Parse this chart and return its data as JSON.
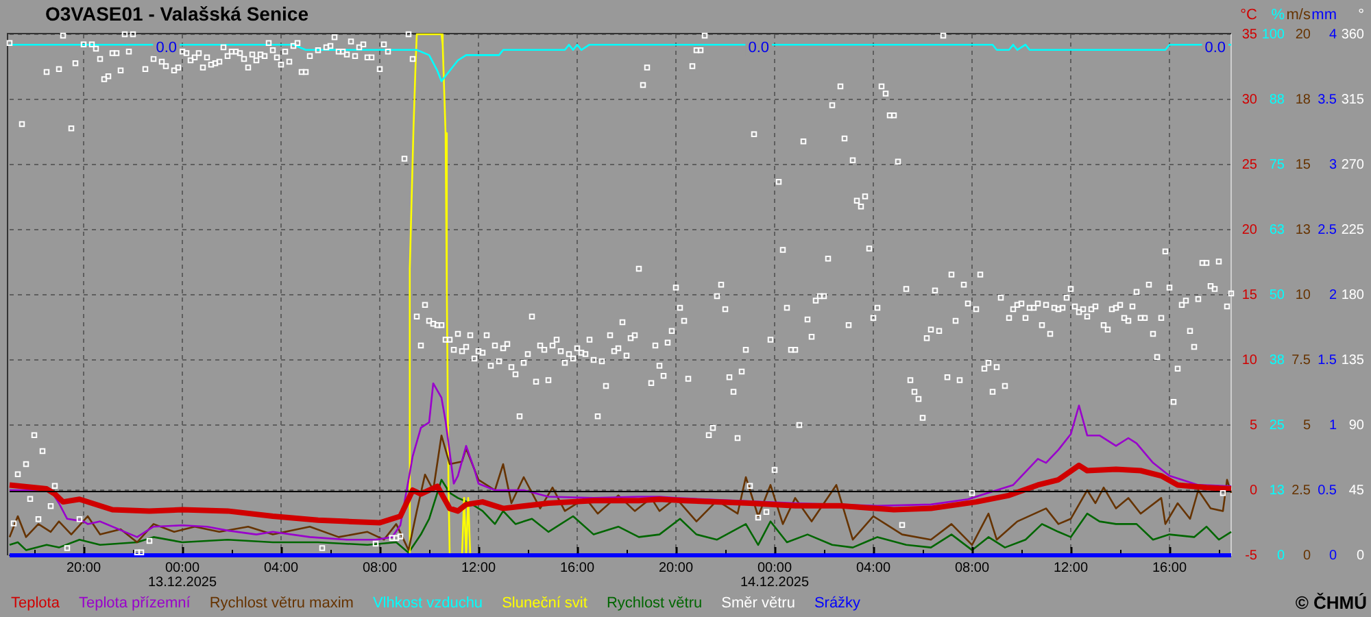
{
  "chart_data": [
    {
      "type": "line",
      "title": "O3VASE01 - Valašská Senice",
      "xlim": [
        "2025-12-12T17:00",
        "2025-12-14T18:30"
      ],
      "xticks": [
        {
          "value": "2025-12-12T18:00",
          "label": null
        },
        {
          "value": "2025-12-12T20:00",
          "label": "20:00"
        },
        {
          "value": "2025-12-12T22:00",
          "label": null
        },
        {
          "value": "2025-12-13T00:00",
          "label": "00:00\n13.12.2025"
        },
        {
          "value": "2025-12-13T02:00",
          "label": null
        },
        {
          "value": "2025-12-13T04:00",
          "label": "04:00"
        },
        {
          "value": "2025-12-13T06:00",
          "label": null
        },
        {
          "value": "2025-12-13T08:00",
          "label": "08:00"
        },
        {
          "value": "2025-12-13T10:00",
          "label": null
        },
        {
          "value": "2025-12-13T12:00",
          "label": "12:00"
        },
        {
          "value": "2025-12-13T14:00",
          "label": null
        },
        {
          "value": "2025-12-13T16:00",
          "label": "16:00"
        },
        {
          "value": "2025-12-13T18:00",
          "label": null
        },
        {
          "value": "2025-12-13T20:00",
          "label": "20:00"
        },
        {
          "value": "2025-12-13T22:00",
          "label": null
        },
        {
          "value": "2025-12-14T00:00",
          "label": "00:00\n14.12.2025"
        },
        {
          "value": "2025-12-14T02:00",
          "label": null
        },
        {
          "value": "2025-12-14T04:00",
          "label": "04:00"
        },
        {
          "value": "2025-12-14T06:00",
          "label": null
        },
        {
          "value": "2025-12-14T08:00",
          "label": "08:00"
        },
        {
          "value": "2025-12-14T10:00",
          "label": null
        },
        {
          "value": "2025-12-14T12:00",
          "label": "12:00"
        },
        {
          "value": "2025-12-14T14:00",
          "label": null
        },
        {
          "value": "2025-12-14T16:00",
          "label": "16:00"
        },
        {
          "value": "2025-12-14T18:00",
          "label": null
        }
      ],
      "ylabel": "°C",
      "ylim": [
        -5,
        35
      ],
      "yticks": [
        -5,
        0,
        5,
        10,
        15,
        20,
        25,
        30,
        35
      ],
      "y2label": "%",
      "y2lim": [
        0,
        100
      ],
      "y2ticks": [
        0,
        {
          "value": 12.5,
          "label": "13"
        },
        25,
        {
          "value": 37.5,
          "label": "38"
        },
        50,
        {
          "value": 62.5,
          "label": "63"
        },
        75,
        {
          "value": 87.5,
          "label": "88"
        },
        100
      ],
      "y3label": "m/s",
      "y3lim": [
        0,
        20
      ],
      "y3ticks": [
        0,
        2.5,
        5,
        7.5,
        10,
        {
          "value": 12.5,
          "label": "13"
        },
        15,
        {
          "value": 17.5,
          "label": "18"
        },
        20
      ],
      "grid": true,
      "legend": "bottom",
      "ref_lines": [
        {
          "axis": "y",
          "value": 0,
          "color": "#000000"
        }
      ],
      "annotations": [
        "© ČHMÚ"
      ],
      "series": [
        {
          "name": "Teplota",
          "color": "#d00000",
          "x": [
            "2025-12-12T17:00",
            "2025-12-12T18:30",
            "2025-12-12T18:50",
            "2025-12-12T19:10",
            "2025-12-12T19:50",
            "2025-12-12T21:10",
            "2025-12-12T22:40",
            "2025-12-13T00:00",
            "2025-12-13T01:50",
            "2025-12-13T03:40",
            "2025-12-13T05:30",
            "2025-12-13T06:40",
            "2025-12-13T08:00",
            "2025-12-13T08:50",
            "2025-12-13T09:20",
            "2025-12-13T09:40",
            "2025-12-13T10:20",
            "2025-12-13T10:50",
            "2025-12-13T11:10",
            "2025-12-13T11:30",
            "2025-12-13T12:10",
            "2025-12-13T13:00",
            "2025-12-13T14:50",
            "2025-12-13T16:40",
            "2025-12-13T18:30",
            "2025-12-13T19:20",
            "2025-12-13T20:20",
            "2025-12-13T23:00",
            "2025-12-14T00:50",
            "2025-12-14T02:40",
            "2025-12-14T04:50",
            "2025-12-14T06:20",
            "2025-12-14T08:10",
            "2025-12-14T09:30",
            "2025-12-14T10:40",
            "2025-12-14T11:30",
            "2025-12-14T12:20",
            "2025-12-14T12:40",
            "2025-12-14T13:50",
            "2025-12-14T14:50",
            "2025-12-14T15:40",
            "2025-12-14T16:20",
            "2025-12-14T17:30",
            "2025-12-14T18:30"
          ],
          "values": [
            0.4,
            0.1,
            -0.3,
            -0.9,
            -0.7,
            -1.5,
            -1.6,
            -1.5,
            -1.6,
            -2.0,
            -2.3,
            -2.4,
            -2.5,
            -2.0,
            0.0,
            -0.3,
            0.3,
            -1.4,
            -1.6,
            -1.1,
            -0.9,
            -1.4,
            -1.0,
            -0.8,
            -0.8,
            -0.7,
            -0.8,
            -1.0,
            -1.2,
            -1.2,
            -1.5,
            -1.4,
            -0.9,
            -0.4,
            0.4,
            0.8,
            1.9,
            1.5,
            1.6,
            1.5,
            1.1,
            0.4,
            0.2,
            0.1
          ]
        },
        {
          "name": "Teplota přízemní",
          "color": "#9900cc",
          "x": [
            "2025-12-12T17:00",
            "2025-12-12T18:40",
            "2025-12-12T19:00",
            "2025-12-12T19:20",
            "2025-12-12T20:00",
            "2025-12-12T20:10",
            "2025-12-12T20:40",
            "2025-12-12T22:10",
            "2025-12-12T22:50",
            "2025-12-13T00:00",
            "2025-12-13T01:00",
            "2025-12-13T01:50",
            "2025-12-13T03:00",
            "2025-12-13T03:40",
            "2025-12-13T05:10",
            "2025-12-13T06:40",
            "2025-12-13T07:50",
            "2025-12-13T08:30",
            "2025-12-13T08:50",
            "2025-12-13T09:10",
            "2025-12-13T09:20",
            "2025-12-13T09:40",
            "2025-12-13T10:00",
            "2025-12-13T10:10",
            "2025-12-13T10:30",
            "2025-12-13T10:40",
            "2025-12-13T11:00",
            "2025-12-13T11:10",
            "2025-12-13T11:30",
            "2025-12-13T11:50",
            "2025-12-13T12:00",
            "2025-12-13T12:40",
            "2025-12-13T13:50",
            "2025-12-13T14:50",
            "2025-12-13T16:40",
            "2025-12-13T18:30",
            "2025-12-13T19:20",
            "2025-12-13T20:00",
            "2025-12-13T21:10",
            "2025-12-14T00:50",
            "2025-12-14T04:10",
            "2025-12-14T06:20",
            "2025-12-14T07:50",
            "2025-12-14T09:00",
            "2025-12-14T09:40",
            "2025-12-14T10:40",
            "2025-12-14T11:00",
            "2025-12-14T11:30",
            "2025-12-14T12:00",
            "2025-12-14T12:20",
            "2025-12-14T12:40",
            "2025-12-14T13:10",
            "2025-12-14T13:50",
            "2025-12-14T14:20",
            "2025-12-14T14:40",
            "2025-12-14T15:20",
            "2025-12-14T16:00",
            "2025-12-14T17:10",
            "2025-12-14T18:30"
          ],
          "values": [
            0.0,
            0.0,
            -1.0,
            -2.2,
            -2.4,
            -2.6,
            -2.4,
            -3.6,
            -2.8,
            -2.7,
            -2.8,
            -3.1,
            -3.4,
            -3.2,
            -3.6,
            -3.8,
            -3.8,
            -3.6,
            -2.7,
            0.8,
            2.6,
            4.8,
            5.2,
            8.2,
            7.1,
            5.3,
            0.5,
            1.1,
            3.4,
            1.6,
            0.5,
            0.0,
            0.0,
            -0.5,
            -0.6,
            -0.5,
            -0.5,
            -0.6,
            -0.7,
            -1.0,
            -1.2,
            -1.1,
            -0.7,
            0.0,
            0.4,
            2.4,
            2.1,
            3.1,
            4.3,
            6.5,
            4.2,
            4.2,
            3.4,
            4.0,
            3.6,
            2.1,
            1.1,
            0.4,
            0.3
          ]
        },
        {
          "name": "Rychlost větru maxim",
          "color": "#663300",
          "axis": "y3",
          "x": [
            "2025-12-12T17:00",
            "2025-12-12T17:20",
            "2025-12-12T17:40",
            "2025-12-12T18:10",
            "2025-12-12T18:40",
            "2025-12-12T19:00",
            "2025-12-12T19:30",
            "2025-12-12T20:10",
            "2025-12-12T20:40",
            "2025-12-12T21:30",
            "2025-12-12T22:10",
            "2025-12-12T22:50",
            "2025-12-12T23:40",
            "2025-12-13T00:30",
            "2025-12-13T01:30",
            "2025-12-13T02:40",
            "2025-12-13T03:40",
            "2025-12-13T05:10",
            "2025-12-13T06:20",
            "2025-12-13T07:30",
            "2025-12-13T08:10",
            "2025-12-13T08:40",
            "2025-12-13T09:10",
            "2025-12-13T09:30",
            "2025-12-13T09:50",
            "2025-12-13T10:10",
            "2025-12-13T10:30",
            "2025-12-13T10:50",
            "2025-12-13T11:20",
            "2025-12-13T11:30",
            "2025-12-13T12:00",
            "2025-12-13T12:40",
            "2025-12-13T13:00",
            "2025-12-13T13:20",
            "2025-12-13T13:50",
            "2025-12-13T14:30",
            "2025-12-13T15:00",
            "2025-12-13T15:30",
            "2025-12-13T16:20",
            "2025-12-13T16:50",
            "2025-12-13T17:40",
            "2025-12-13T18:20",
            "2025-12-13T19:00",
            "2025-12-13T19:20",
            "2025-12-13T20:00",
            "2025-12-13T20:50",
            "2025-12-13T21:40",
            "2025-12-13T22:30",
            "2025-12-13T22:50",
            "2025-12-13T23:20",
            "2025-12-13T23:50",
            "2025-12-14T00:20",
            "2025-12-14T00:50",
            "2025-12-14T01:30",
            "2025-12-14T02:30",
            "2025-12-14T03:10",
            "2025-12-14T04:00",
            "2025-12-14T05:10",
            "2025-12-14T06:20",
            "2025-12-14T07:10",
            "2025-12-14T08:00",
            "2025-12-14T08:40",
            "2025-12-14T09:00",
            "2025-12-14T09:50",
            "2025-12-14T11:00",
            "2025-12-14T11:30",
            "2025-12-14T12:00",
            "2025-12-14T12:40",
            "2025-12-14T13:00",
            "2025-12-14T13:20",
            "2025-12-14T13:50",
            "2025-12-14T14:20",
            "2025-12-14T14:50",
            "2025-12-14T15:40",
            "2025-12-14T15:50",
            "2025-12-14T16:20",
            "2025-12-14T16:50",
            "2025-12-14T17:10",
            "2025-12-14T17:40",
            "2025-12-14T18:10",
            "2025-12-14T18:20",
            "2025-12-14T18:30"
          ],
          "values": [
            0.7,
            1.5,
            0.7,
            1.2,
            0.9,
            1.3,
            0.8,
            1.5,
            0.8,
            1.0,
            0.5,
            1.2,
            0.9,
            1.1,
            0.9,
            1.1,
            0.8,
            1.1,
            0.7,
            0.9,
            0.6,
            1.2,
            0.2,
            1.7,
            3.1,
            2.5,
            4.6,
            3.5,
            3.6,
            4.1,
            2.9,
            2.5,
            3.5,
            2.0,
            3.0,
            1.8,
            2.6,
            1.7,
            2.2,
            1.6,
            2.3,
            1.7,
            2.2,
            1.7,
            2.2,
            1.3,
            2.1,
            1.6,
            3.0,
            1.5,
            2.7,
            1.2,
            2.2,
            1.3,
            2.7,
            0.6,
            1.5,
            0.8,
            0.6,
            1.2,
            0.4,
            1.6,
            0.6,
            1.3,
            1.8,
            1.2,
            1.4,
            2.5,
            2.0,
            2.6,
            1.8,
            2.2,
            1.6,
            2.2,
            1.2,
            2.0,
            1.4,
            2.5,
            1.8,
            1.7,
            2.9,
            2.4
          ]
        },
        {
          "name": "Vlhkost vzduchu",
          "color": "#00ffff",
          "axis": "y2",
          "x": [
            "2025-12-12T17:00",
            "2025-12-13T04:30",
            "2025-12-13T05:00",
            "2025-12-13T09:30",
            "2025-12-13T10:00",
            "2025-12-13T10:20",
            "2025-12-13T10:30",
            "2025-12-13T10:50",
            "2025-12-13T11:10",
            "2025-12-13T11:30",
            "2025-12-13T12:50",
            "2025-12-13T13:00",
            "2025-12-13T15:30",
            "2025-12-13T15:40",
            "2025-12-13T15:50",
            "2025-12-13T16:00",
            "2025-12-13T16:10",
            "2025-12-13T16:30",
            "2025-12-14T08:50",
            "2025-12-14T09:00",
            "2025-12-14T09:30",
            "2025-12-14T09:40",
            "2025-12-14T09:50",
            "2025-12-14T10:10",
            "2025-12-14T10:20",
            "2025-12-14T15:50",
            "2025-12-14T16:00",
            "2025-12-14T18:30"
          ],
          "values": [
            98,
            98,
            97,
            97,
            96,
            93,
            91,
            93,
            95,
            96,
            96,
            97,
            97,
            98,
            97,
            98,
            97,
            98,
            98,
            97,
            97,
            98,
            97,
            98,
            97,
            97,
            98,
            98
          ]
        },
        {
          "name": "Sluneční svit",
          "color": "#ffff00",
          "axis": "y2",
          "x": [
            "2025-12-13T09:10",
            "2025-12-13T09:13",
            "2025-12-13T09:22",
            "2025-12-13T09:27",
            "2025-12-13T09:30",
            "2025-12-13T10:30",
            "2025-12-13T10:33",
            "2025-12-13T10:40",
            "2025-12-13T10:43",
            "2025-12-13T10:47",
            "2025-12-13T10:50",
            "2025-12-13T11:20",
            "2025-12-13T11:25",
            "2025-12-13T11:30",
            "2025-12-13T11:35",
            "2025-12-13T11:40"
          ],
          "values": [
            0,
            55,
            82,
            94,
            100,
            100,
            98,
            81,
            51,
            14,
            0,
            0,
            11,
            0,
            11,
            0
          ]
        },
        {
          "name": "Rychlost větru",
          "color": "#006600",
          "axis": "y3",
          "x": [
            "2025-12-12T17:00",
            "2025-12-12T17:20",
            "2025-12-12T17:40",
            "2025-12-12T18:30",
            "2025-12-12T19:00",
            "2025-12-12T19:50",
            "2025-12-12T20:40",
            "2025-12-12T22:10",
            "2025-12-12T22:50",
            "2025-12-13T00:00",
            "2025-12-13T01:50",
            "2025-12-13T03:40",
            "2025-12-13T05:30",
            "2025-12-13T07:30",
            "2025-12-13T08:40",
            "2025-12-13T09:10",
            "2025-12-13T09:40",
            "2025-12-13T10:00",
            "2025-12-13T10:30",
            "2025-12-13T10:50",
            "2025-12-13T11:10",
            "2025-12-13T11:40",
            "2025-12-13T12:10",
            "2025-12-13T12:40",
            "2025-12-13T13:00",
            "2025-12-13T13:30",
            "2025-12-13T14:10",
            "2025-12-13T14:50",
            "2025-12-13T15:50",
            "2025-12-13T16:40",
            "2025-12-13T17:40",
            "2025-12-13T18:30",
            "2025-12-13T19:20",
            "2025-12-13T20:10",
            "2025-12-13T20:50",
            "2025-12-13T21:40",
            "2025-12-13T22:50",
            "2025-12-13T23:20",
            "2025-12-13T23:50",
            "2025-12-14T00:30",
            "2025-12-14T01:20",
            "2025-12-14T02:20",
            "2025-12-14T03:10",
            "2025-12-14T04:10",
            "2025-12-14T05:20",
            "2025-12-14T06:20",
            "2025-12-14T07:10",
            "2025-12-14T08:00",
            "2025-12-14T08:40",
            "2025-12-14T09:20",
            "2025-12-14T10:10",
            "2025-12-14T10:50",
            "2025-12-14T11:30",
            "2025-12-14T12:00",
            "2025-12-14T12:40",
            "2025-12-14T13:10",
            "2025-12-14T13:50",
            "2025-12-14T14:40",
            "2025-12-14T15:20",
            "2025-12-14T16:00",
            "2025-12-14T17:00",
            "2025-12-14T17:30",
            "2025-12-14T18:00",
            "2025-12-14T18:30"
          ],
          "values": [
            0.4,
            0.5,
            0.2,
            0.4,
            0.3,
            0.6,
            0.4,
            0.5,
            0.7,
            0.5,
            0.6,
            0.5,
            0.5,
            0.4,
            0.5,
            0.1,
            0.8,
            1.4,
            2.9,
            2.4,
            2.2,
            2.0,
            1.7,
            1.2,
            1.7,
            1.2,
            1.4,
            0.9,
            1.5,
            0.8,
            1.1,
            0.7,
            0.8,
            1.4,
            0.8,
            0.6,
            1.2,
            0.4,
            1.3,
            0.5,
            0.8,
            0.4,
            0.3,
            0.7,
            0.4,
            0.3,
            0.8,
            0.2,
            0.7,
            0.3,
            0.6,
            1.2,
            0.9,
            0.7,
            1.6,
            1.3,
            1.2,
            1.2,
            0.6,
            0.8,
            0.7,
            1.1,
            0.6,
            0.9
          ]
        }
      ]
    },
    {
      "type": "line",
      "tick_labels": "y",
      "xlim": [
        "2025-12-12T17:00",
        "2025-12-14T18:30"
      ],
      "ylabel": "mm",
      "ylim": [
        0,
        4
      ],
      "yticks": [
        0,
        0.5,
        1,
        1.5,
        2,
        2.5,
        3,
        3.5,
        4
      ],
      "y2label": "°",
      "y2lim": [
        0,
        360
      ],
      "y2ticks": [
        0,
        45,
        90,
        135,
        180,
        225,
        270,
        315,
        360
      ],
      "legend": "bottom",
      "annotations": [
        "0.0",
        "0.0",
        "0.0"
      ],
      "series": [
        {
          "name": "Směr větru",
          "color": "#ffffff",
          "type": "scatter",
          "marker": "square",
          "axis": "y2",
          "x": [
            "2025-12-12T17:00",
            "2025-12-12T17:10",
            "2025-12-12T17:20",
            "2025-12-12T17:30",
            "2025-12-12T17:40",
            "2025-12-12T17:50",
            "2025-12-12T18:00",
            "2025-12-12T18:10",
            "2025-12-12T18:20",
            "2025-12-12T18:30",
            "2025-12-12T18:40",
            "2025-12-12T18:50",
            "2025-12-12T19:00",
            "2025-12-12T19:10",
            "2025-12-12T19:20",
            "2025-12-12T19:30",
            "2025-12-12T19:40",
            "2025-12-12T19:50",
            "2025-12-12T20:00",
            "2025-12-12T20:20",
            "2025-12-12T20:30",
            "2025-12-12T20:40",
            "2025-12-12T20:50",
            "2025-12-12T21:00",
            "2025-12-12T21:10",
            "2025-12-12T21:20",
            "2025-12-12T21:30",
            "2025-12-12T21:40",
            "2025-12-12T21:50",
            "2025-12-12T22:00",
            "2025-12-12T22:10",
            "2025-12-12T22:20",
            "2025-12-12T22:30",
            "2025-12-12T22:40",
            "2025-12-12T22:50",
            "2025-12-12T23:10",
            "2025-12-12T23:20",
            "2025-12-12T23:40",
            "2025-12-12T23:50",
            "2025-12-13T00:00",
            "2025-12-13T00:10",
            "2025-12-13T00:20",
            "2025-12-13T00:30",
            "2025-12-13T00:40",
            "2025-12-13T00:50",
            "2025-12-13T01:00",
            "2025-12-13T01:10",
            "2025-12-13T01:20",
            "2025-12-13T01:30",
            "2025-12-13T01:40",
            "2025-12-13T01:50",
            "2025-12-13T02:00",
            "2025-12-13T02:10",
            "2025-12-13T02:20",
            "2025-12-13T02:30",
            "2025-12-13T02:40",
            "2025-12-13T02:50",
            "2025-12-13T03:00",
            "2025-12-13T03:10",
            "2025-12-13T03:20",
            "2025-12-13T03:30",
            "2025-12-13T03:40",
            "2025-12-13T03:50",
            "2025-12-13T04:00",
            "2025-12-13T04:10",
            "2025-12-13T04:20",
            "2025-12-13T04:30",
            "2025-12-13T04:40",
            "2025-12-13T04:50",
            "2025-12-13T05:00",
            "2025-12-13T05:10",
            "2025-12-13T05:30",
            "2025-12-13T05:40",
            "2025-12-13T05:50",
            "2025-12-13T06:00",
            "2025-12-13T06:10",
            "2025-12-13T06:20",
            "2025-12-13T06:30",
            "2025-12-13T06:40",
            "2025-12-13T06:50",
            "2025-12-13T07:00",
            "2025-12-13T07:10",
            "2025-12-13T07:20",
            "2025-12-13T07:30",
            "2025-12-13T07:40",
            "2025-12-13T07:50",
            "2025-12-13T08:00",
            "2025-12-13T08:10",
            "2025-12-13T08:20",
            "2025-12-13T08:30",
            "2025-12-13T08:40",
            "2025-12-13T08:50",
            "2025-12-13T09:00",
            "2025-12-13T09:10",
            "2025-12-13T09:20",
            "2025-12-13T09:30",
            "2025-12-13T09:40",
            "2025-12-13T09:50",
            "2025-12-13T10:00",
            "2025-12-13T10:10",
            "2025-12-13T10:20",
            "2025-12-13T10:30",
            "2025-12-13T10:40",
            "2025-12-13T10:50",
            "2025-12-13T11:00",
            "2025-12-13T11:10",
            "2025-12-13T11:20",
            "2025-12-13T11:30",
            "2025-12-13T11:40",
            "2025-12-13T11:50",
            "2025-12-13T12:00",
            "2025-12-13T12:10",
            "2025-12-13T12:20",
            "2025-12-13T12:30",
            "2025-12-13T12:40",
            "2025-12-13T12:50",
            "2025-12-13T13:00",
            "2025-12-13T13:10",
            "2025-12-13T13:20",
            "2025-12-13T13:30",
            "2025-12-13T13:40",
            "2025-12-13T13:50",
            "2025-12-13T14:00",
            "2025-12-13T14:10",
            "2025-12-13T14:20",
            "2025-12-13T14:30",
            "2025-12-13T14:40",
            "2025-12-13T14:50",
            "2025-12-13T15:00",
            "2025-12-13T15:10",
            "2025-12-13T15:20",
            "2025-12-13T15:30",
            "2025-12-13T15:40",
            "2025-12-13T15:50",
            "2025-12-13T16:00",
            "2025-12-13T16:10",
            "2025-12-13T16:20",
            "2025-12-13T16:30",
            "2025-12-13T16:40",
            "2025-12-13T16:50",
            "2025-12-13T17:00",
            "2025-12-13T17:10",
            "2025-12-13T17:20",
            "2025-12-13T17:30",
            "2025-12-13T17:40",
            "2025-12-13T17:50",
            "2025-12-13T18:00",
            "2025-12-13T18:10",
            "2025-12-13T18:20",
            "2025-12-13T18:30",
            "2025-12-13T18:40",
            "2025-12-13T18:50",
            "2025-12-13T19:00",
            "2025-12-13T19:10",
            "2025-12-13T19:20",
            "2025-12-13T19:30",
            "2025-12-13T19:40",
            "2025-12-13T19:50",
            "2025-12-13T20:00",
            "2025-12-13T20:10",
            "2025-12-13T20:20",
            "2025-12-13T20:30",
            "2025-12-13T20:40",
            "2025-12-13T20:50",
            "2025-12-13T21:00",
            "2025-12-13T21:10",
            "2025-12-13T21:20",
            "2025-12-13T21:30",
            "2025-12-13T21:40",
            "2025-12-13T21:50",
            "2025-12-13T22:00",
            "2025-12-13T22:10",
            "2025-12-13T22:20",
            "2025-12-13T22:30",
            "2025-12-13T22:40",
            "2025-12-13T22:50",
            "2025-12-13T23:00",
            "2025-12-13T23:10",
            "2025-12-13T23:20",
            "2025-12-13T23:40",
            "2025-12-13T23:50",
            "2025-12-14T00:00",
            "2025-12-14T00:10",
            "2025-12-14T00:20",
            "2025-12-14T00:30",
            "2025-12-14T00:40",
            "2025-12-14T00:50",
            "2025-12-14T01:00",
            "2025-12-14T01:10",
            "2025-12-14T01:20",
            "2025-12-14T01:30",
            "2025-12-14T01:40",
            "2025-12-14T01:50",
            "2025-12-14T02:00",
            "2025-12-14T02:10",
            "2025-12-14T02:20",
            "2025-12-14T02:40",
            "2025-12-14T02:50",
            "2025-12-14T03:00",
            "2025-12-14T03:10",
            "2025-12-14T03:20",
            "2025-12-14T03:30",
            "2025-12-14T03:40",
            "2025-12-14T03:50",
            "2025-12-14T04:00",
            "2025-12-14T04:10",
            "2025-12-14T04:20",
            "2025-12-14T04:30",
            "2025-12-14T04:40",
            "2025-12-14T04:50",
            "2025-12-14T05:00",
            "2025-12-14T05:10",
            "2025-12-14T05:20",
            "2025-12-14T05:30",
            "2025-12-14T05:40",
            "2025-12-14T05:50",
            "2025-12-14T06:00",
            "2025-12-14T06:10",
            "2025-12-14T06:20",
            "2025-12-14T06:30",
            "2025-12-14T06:40",
            "2025-12-14T06:50",
            "2025-12-14T07:00",
            "2025-12-14T07:10",
            "2025-12-14T07:20",
            "2025-12-14T07:30",
            "2025-12-14T07:40",
            "2025-12-14T07:50",
            "2025-12-14T08:00",
            "2025-12-14T08:10",
            "2025-12-14T08:20",
            "2025-12-14T08:30",
            "2025-12-14T08:40",
            "2025-12-14T08:50",
            "2025-12-14T09:00",
            "2025-12-14T09:10",
            "2025-12-14T09:20",
            "2025-12-14T09:30",
            "2025-12-14T09:40",
            "2025-12-14T09:50",
            "2025-12-14T10:00",
            "2025-12-14T10:10",
            "2025-12-14T10:20",
            "2025-12-14T10:30",
            "2025-12-14T10:40",
            "2025-12-14T10:50",
            "2025-12-14T11:00",
            "2025-12-14T11:10",
            "2025-12-14T11:20",
            "2025-12-14T11:30",
            "2025-12-14T11:40",
            "2025-12-14T11:50",
            "2025-12-14T12:00",
            "2025-12-14T12:10",
            "2025-12-14T12:20",
            "2025-12-14T12:30",
            "2025-12-14T12:40",
            "2025-12-14T12:50",
            "2025-12-14T13:00",
            "2025-12-14T13:20",
            "2025-12-14T13:30",
            "2025-12-14T13:40",
            "2025-12-14T13:50",
            "2025-12-14T14:00",
            "2025-12-14T14:10",
            "2025-12-14T14:20",
            "2025-12-14T14:30",
            "2025-12-14T14:40",
            "2025-12-14T14:50",
            "2025-12-14T15:00",
            "2025-12-14T15:10",
            "2025-12-14T15:20",
            "2025-12-14T15:30",
            "2025-12-14T15:40",
            "2025-12-14T15:50",
            "2025-12-14T16:00",
            "2025-12-14T16:10",
            "2025-12-14T16:20",
            "2025-12-14T16:30",
            "2025-12-14T16:40",
            "2025-12-14T16:50",
            "2025-12-14T17:00",
            "2025-12-14T17:10",
            "2025-12-14T17:20",
            "2025-12-14T17:30",
            "2025-12-14T17:40",
            "2025-12-14T17:50",
            "2025-12-14T18:00",
            "2025-12-14T18:10",
            "2025-12-14T18:20",
            "2025-12-14T18:30"
          ],
          "values": [
            354,
            22,
            56,
            298,
            63,
            39,
            83,
            25,
            72,
            334,
            34,
            48,
            336,
            359,
            5,
            295,
            340,
            25,
            353,
            353,
            350,
            343,
            329,
            331,
            347,
            347,
            335,
            360,
            348,
            360,
            2,
            2,
            336,
            10,
            343,
            341,
            338,
            335,
            337,
            348,
            347,
            342,
            344,
            347,
            337,
            344,
            339,
            340,
            341,
            351,
            345,
            348,
            348,
            347,
            343,
            337,
            346,
            342,
            346,
            345,
            354,
            349,
            344,
            339,
            348,
            341,
            352,
            354,
            334,
            334,
            345,
            349,
            5,
            351,
            352,
            358,
            348,
            348,
            346,
            355,
            345,
            351,
            353,
            344,
            344,
            8,
            336,
            353,
            348,
            12,
            12,
            13,
            274,
            360,
            343,
            165,
            145,
            173,
            162,
            160,
            159,
            159,
            149,
            149,
            142,
            153,
            141,
            144,
            152,
            136,
            141,
            140,
            152,
            131,
            145,
            134,
            143,
            146,
            130,
            125,
            96,
            133,
            139,
            165,
            120,
            145,
            142,
            121,
            145,
            149,
            141,
            133,
            139,
            136,
            143,
            140,
            139,
            149,
            135,
            96,
            134,
            117,
            152,
            141,
            143,
            161,
            138,
            150,
            152,
            198,
            325,
            337,
            119,
            145,
            131,
            124,
            147,
            155,
            185,
            171,
            162,
            122,
            338,
            349,
            349,
            359,
            83,
            88,
            179,
            187,
            170,
            123,
            113,
            81,
            127,
            142,
            48,
            291,
            26,
            30,
            149,
            59,
            258,
            211,
            171,
            142,
            142,
            90,
            286,
            163,
            151,
            176,
            179,
            179,
            205,
            311,
            324,
            288,
            159,
            273,
            245,
            241,
            248,
            212,
            164,
            171,
            324,
            319,
            304,
            304,
            272,
            21,
            184,
            121,
            113,
            108,
            95,
            150,
            156,
            183,
            155,
            359,
            123,
            194,
            162,
            121,
            187,
            174,
            43,
            170,
            194,
            129,
            133,
            113,
            130,
            178,
            117,
            164,
            170,
            173,
            174,
            164,
            171,
            171,
            174,
            159,
            173,
            153,
            171,
            170,
            171,
            178,
            184,
            172,
            168,
            170,
            165,
            170,
            172,
            159,
            156,
            170,
            171,
            173,
            164,
            162,
            172,
            182,
            164,
            164,
            187,
            153,
            137,
            164,
            210,
            185,
            106,
            129,
            173,
            176,
            155,
            144,
            177,
            202,
            202,
            186,
            184,
            203,
            43,
            172,
            181
          ]
        },
        {
          "name": "Srážky",
          "color": "#0000ff",
          "x": [
            "2025-12-12T17:00",
            "2025-12-14T18:30"
          ],
          "values": [
            0,
            0
          ]
        }
      ]
    }
  ]
}
